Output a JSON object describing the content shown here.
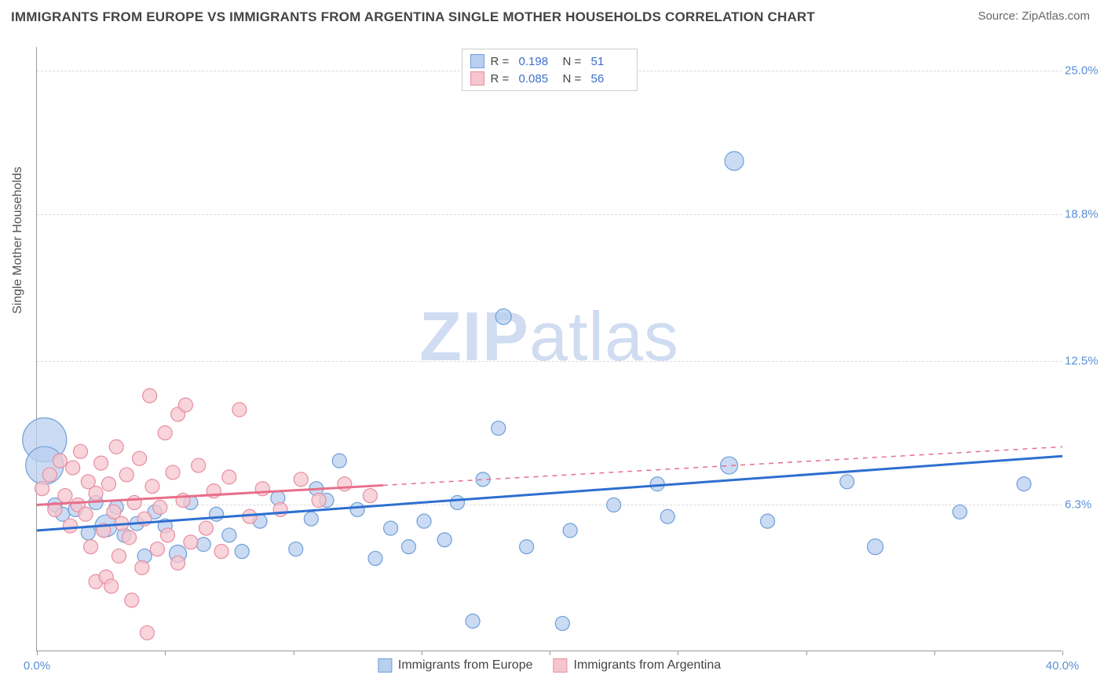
{
  "title": "IMMIGRANTS FROM EUROPE VS IMMIGRANTS FROM ARGENTINA SINGLE MOTHER HOUSEHOLDS CORRELATION CHART",
  "source_label": "Source: ZipAtlas.com",
  "watermark_main": "ZIP",
  "watermark_sub": "atlas",
  "chart": {
    "type": "scatter",
    "ylabel": "Single Mother Households",
    "xlim": [
      0,
      40
    ],
    "ylim": [
      0,
      26
    ],
    "x_ticks": [
      0,
      5,
      10,
      15,
      20,
      25,
      30,
      35,
      40
    ],
    "x_tick_labels": {
      "0": "0.0%",
      "40": "40.0%"
    },
    "y_ticks": [
      6.3,
      12.5,
      18.8,
      25.0
    ],
    "y_tick_labels": [
      "6.3%",
      "12.5%",
      "18.8%",
      "25.0%"
    ],
    "grid_color": "#dddddd",
    "axis_color": "#999999",
    "background_color": "#ffffff",
    "series": [
      {
        "name": "Immigrants from Europe",
        "color_fill": "#b8cfef",
        "color_stroke": "#6f9fd8",
        "trend_color": "#2e6fd0",
        "trend_solid_xmax": 40,
        "trend_y_start": 5.2,
        "trend_y_end": 8.4,
        "R": "0.198",
        "N": "51",
        "default_radius": 9,
        "points": [
          {
            "x": 0.3,
            "y": 9.1,
            "r": 28
          },
          {
            "x": 0.3,
            "y": 8.0,
            "r": 24
          },
          {
            "x": 0.7,
            "y": 6.3
          },
          {
            "x": 1.0,
            "y": 5.9
          },
          {
            "x": 1.5,
            "y": 6.1
          },
          {
            "x": 2.0,
            "y": 5.1
          },
          {
            "x": 2.3,
            "y": 6.4
          },
          {
            "x": 2.7,
            "y": 5.4,
            "r": 14
          },
          {
            "x": 3.1,
            "y": 6.2
          },
          {
            "x": 3.4,
            "y": 5.0
          },
          {
            "x": 3.9,
            "y": 5.5
          },
          {
            "x": 4.2,
            "y": 4.1
          },
          {
            "x": 4.6,
            "y": 6.0
          },
          {
            "x": 5.0,
            "y": 5.4
          },
          {
            "x": 5.5,
            "y": 4.2,
            "r": 11
          },
          {
            "x": 6.0,
            "y": 6.4
          },
          {
            "x": 6.5,
            "y": 4.6
          },
          {
            "x": 7.0,
            "y": 5.9
          },
          {
            "x": 7.5,
            "y": 5.0
          },
          {
            "x": 8.0,
            "y": 4.3
          },
          {
            "x": 8.7,
            "y": 5.6
          },
          {
            "x": 9.4,
            "y": 6.6
          },
          {
            "x": 10.1,
            "y": 4.4
          },
          {
            "x": 10.7,
            "y": 5.7
          },
          {
            "x": 10.9,
            "y": 7.0
          },
          {
            "x": 11.3,
            "y": 6.5
          },
          {
            "x": 11.8,
            "y": 8.2
          },
          {
            "x": 12.5,
            "y": 6.1
          },
          {
            "x": 13.2,
            "y": 4.0
          },
          {
            "x": 13.8,
            "y": 5.3
          },
          {
            "x": 14.5,
            "y": 4.5
          },
          {
            "x": 15.1,
            "y": 5.6
          },
          {
            "x": 15.9,
            "y": 4.8
          },
          {
            "x": 16.4,
            "y": 6.4
          },
          {
            "x": 17.0,
            "y": 1.3
          },
          {
            "x": 17.4,
            "y": 7.4
          },
          {
            "x": 18.0,
            "y": 9.6
          },
          {
            "x": 18.2,
            "y": 14.4,
            "r": 10
          },
          {
            "x": 19.1,
            "y": 4.5
          },
          {
            "x": 20.5,
            "y": 1.2
          },
          {
            "x": 20.8,
            "y": 5.2
          },
          {
            "x": 22.5,
            "y": 6.3
          },
          {
            "x": 24.2,
            "y": 7.2
          },
          {
            "x": 24.6,
            "y": 5.8
          },
          {
            "x": 27.0,
            "y": 8.0,
            "r": 11
          },
          {
            "x": 27.2,
            "y": 21.1,
            "r": 12
          },
          {
            "x": 28.5,
            "y": 5.6
          },
          {
            "x": 31.6,
            "y": 7.3
          },
          {
            "x": 32.7,
            "y": 4.5,
            "r": 10
          },
          {
            "x": 36.0,
            "y": 6.0
          },
          {
            "x": 38.5,
            "y": 7.2
          }
        ]
      },
      {
        "name": "Immigrants from Argentina",
        "color_fill": "#f6c6cf",
        "color_stroke": "#e88da0",
        "trend_color": "#e76f8a",
        "trend_solid_xmax": 13.5,
        "trend_y_start": 6.3,
        "trend_y_end": 8.8,
        "R": "0.085",
        "N": "56",
        "default_radius": 9,
        "points": [
          {
            "x": 0.2,
            "y": 7.0
          },
          {
            "x": 0.5,
            "y": 7.6
          },
          {
            "x": 0.7,
            "y": 6.1
          },
          {
            "x": 0.9,
            "y": 8.2
          },
          {
            "x": 1.1,
            "y": 6.7
          },
          {
            "x": 1.3,
            "y": 5.4
          },
          {
            "x": 1.4,
            "y": 7.9
          },
          {
            "x": 1.6,
            "y": 6.3
          },
          {
            "x": 1.7,
            "y": 8.6
          },
          {
            "x": 1.9,
            "y": 5.9
          },
          {
            "x": 2.0,
            "y": 7.3
          },
          {
            "x": 2.1,
            "y": 4.5
          },
          {
            "x": 2.3,
            "y": 6.8
          },
          {
            "x": 2.3,
            "y": 3.0
          },
          {
            "x": 2.5,
            "y": 8.1
          },
          {
            "x": 2.6,
            "y": 5.2
          },
          {
            "x": 2.7,
            "y": 3.2
          },
          {
            "x": 2.8,
            "y": 7.2
          },
          {
            "x": 2.9,
            "y": 2.8
          },
          {
            "x": 3.0,
            "y": 6.0
          },
          {
            "x": 3.1,
            "y": 8.8
          },
          {
            "x": 3.2,
            "y": 4.1
          },
          {
            "x": 3.3,
            "y": 5.5
          },
          {
            "x": 3.5,
            "y": 7.6
          },
          {
            "x": 3.6,
            "y": 4.9
          },
          {
            "x": 3.7,
            "y": 2.2
          },
          {
            "x": 3.8,
            "y": 6.4
          },
          {
            "x": 4.0,
            "y": 8.3
          },
          {
            "x": 4.1,
            "y": 3.6
          },
          {
            "x": 4.2,
            "y": 5.7
          },
          {
            "x": 4.3,
            "y": 0.8
          },
          {
            "x": 4.4,
            "y": 11.0
          },
          {
            "x": 4.5,
            "y": 7.1
          },
          {
            "x": 4.7,
            "y": 4.4
          },
          {
            "x": 4.8,
            "y": 6.2
          },
          {
            "x": 5.0,
            "y": 9.4
          },
          {
            "x": 5.1,
            "y": 5.0
          },
          {
            "x": 5.3,
            "y": 7.7
          },
          {
            "x": 5.5,
            "y": 3.8
          },
          {
            "x": 5.5,
            "y": 10.2
          },
          {
            "x": 5.7,
            "y": 6.5
          },
          {
            "x": 5.8,
            "y": 10.6
          },
          {
            "x": 6.0,
            "y": 4.7
          },
          {
            "x": 6.3,
            "y": 8.0
          },
          {
            "x": 6.6,
            "y": 5.3
          },
          {
            "x": 6.9,
            "y": 6.9
          },
          {
            "x": 7.2,
            "y": 4.3
          },
          {
            "x": 7.5,
            "y": 7.5
          },
          {
            "x": 7.9,
            "y": 10.4
          },
          {
            "x": 8.3,
            "y": 5.8
          },
          {
            "x": 8.8,
            "y": 7.0
          },
          {
            "x": 9.5,
            "y": 6.1
          },
          {
            "x": 10.3,
            "y": 7.4
          },
          {
            "x": 11.0,
            "y": 6.5
          },
          {
            "x": 12.0,
            "y": 7.2
          },
          {
            "x": 13.0,
            "y": 6.7
          }
        ]
      }
    ]
  },
  "legend_top": {
    "rows": [
      {
        "swatch_fill": "#b8cfef",
        "swatch_stroke": "#6f9fd8",
        "r_label": "R =",
        "r_value": "0.198",
        "n_label": "N =",
        "n_value": "51"
      },
      {
        "swatch_fill": "#f6c6cf",
        "swatch_stroke": "#e88da0",
        "r_label": "R =",
        "r_value": "0.085",
        "n_label": "N =",
        "n_value": "56"
      }
    ]
  },
  "legend_bottom": {
    "items": [
      {
        "swatch_fill": "#b8cfef",
        "swatch_stroke": "#6f9fd8",
        "label": "Immigrants from Europe"
      },
      {
        "swatch_fill": "#f6c6cf",
        "swatch_stroke": "#e88da0",
        "label": "Immigrants from Argentina"
      }
    ]
  }
}
